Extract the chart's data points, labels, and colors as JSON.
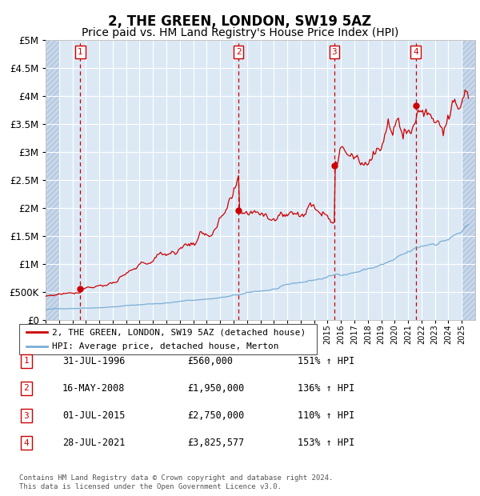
{
  "title": "2, THE GREEN, LONDON, SW19 5AZ",
  "subtitle": "Price paid vs. HM Land Registry's House Price Index (HPI)",
  "title_fontsize": 12,
  "subtitle_fontsize": 10,
  "plot_bg_color": "#dce9f5",
  "hatch_bg_color": "#c8d8ec",
  "grid_color": "#ffffff",
  "ylim": [
    0,
    5000000
  ],
  "yticks": [
    0,
    500000,
    1000000,
    1500000,
    2000000,
    2500000,
    3000000,
    3500000,
    4000000,
    4500000,
    5000000
  ],
  "transactions": [
    {
      "year": 1996.58,
      "price": 560000,
      "label": "1"
    },
    {
      "year": 2008.37,
      "price": 1950000,
      "label": "2"
    },
    {
      "year": 2015.5,
      "price": 2750000,
      "label": "3"
    },
    {
      "year": 2021.57,
      "price": 3825577,
      "label": "4"
    }
  ],
  "vline_years": [
    1996.58,
    2008.37,
    2015.5,
    2021.57
  ],
  "legend_red_label": "2, THE GREEN, LONDON, SW19 5AZ (detached house)",
  "legend_blue_label": "HPI: Average price, detached house, Merton",
  "table_rows": [
    {
      "num": "1",
      "date": "31-JUL-1996",
      "price": "£560,000",
      "hpi": "151% ↑ HPI"
    },
    {
      "num": "2",
      "date": "16-MAY-2008",
      "price": "£1,950,000",
      "hpi": "136% ↑ HPI"
    },
    {
      "num": "3",
      "date": "01-JUL-2015",
      "price": "£2,750,000",
      "hpi": "110% ↑ HPI"
    },
    {
      "num": "4",
      "date": "28-JUL-2021",
      "price": "£3,825,577",
      "hpi": "153% ↑ HPI"
    }
  ],
  "footer_text": "Contains HM Land Registry data © Crown copyright and database right 2024.\nThis data is licensed under the Open Government Licence v3.0.",
  "red_color": "#cc0000",
  "blue_color": "#7aaed6",
  "dot_color": "#cc0000",
  "x_min": 1994,
  "x_max": 2026
}
